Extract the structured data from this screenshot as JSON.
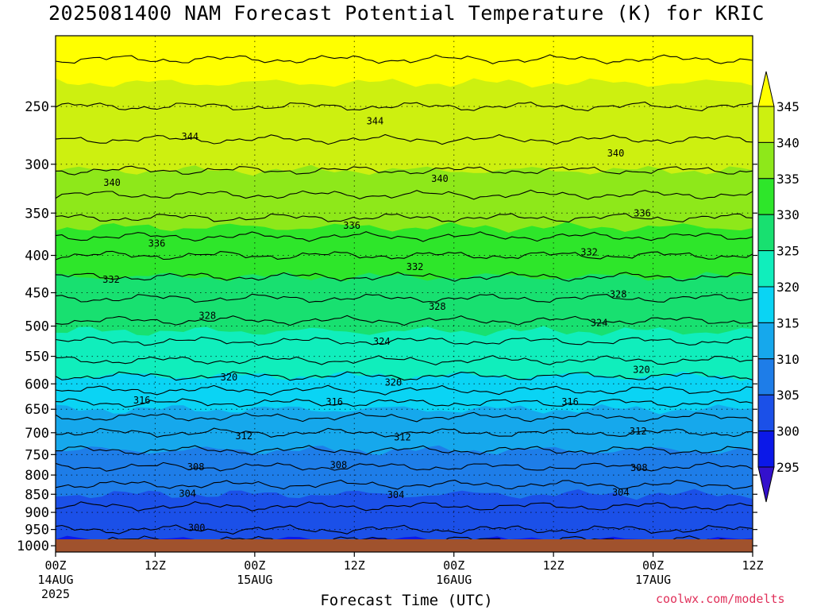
{
  "title": "2025081400 NAM Forecast Potential Temperature (K) for KRIC",
  "xlabel": "Forecast Time (UTC)",
  "credit": "coolwx.com/modelts",
  "chart_data": {
    "type": "heatmap",
    "title": "2025081400 NAM Forecast Potential Temperature (K) for KRIC",
    "xlabel": "Forecast Time (UTC)",
    "ylabel": "",
    "x_hours_range": [
      0,
      84
    ],
    "x_ticks": [
      {
        "hour": 0,
        "label": "00Z",
        "sub1": "14AUG",
        "sub2": "2025"
      },
      {
        "hour": 12,
        "label": "12Z",
        "sub1": "",
        "sub2": ""
      },
      {
        "hour": 24,
        "label": "00Z",
        "sub1": "15AUG",
        "sub2": ""
      },
      {
        "hour": 36,
        "label": "12Z",
        "sub1": "",
        "sub2": ""
      },
      {
        "hour": 48,
        "label": "00Z",
        "sub1": "16AUG",
        "sub2": ""
      },
      {
        "hour": 60,
        "label": "12Z",
        "sub1": "",
        "sub2": ""
      },
      {
        "hour": 72,
        "label": "00Z",
        "sub1": "17AUG",
        "sub2": ""
      },
      {
        "hour": 84,
        "label": "12Z",
        "sub1": "",
        "sub2": ""
      }
    ],
    "y_axis": "pressure (hPa), inverted",
    "ylim": [
      1020,
      200
    ],
    "y_ticks": [
      250,
      300,
      350,
      400,
      450,
      500,
      550,
      600,
      650,
      700,
      750,
      800,
      850,
      900,
      950,
      1000
    ],
    "colorbar": {
      "levels": [
        295,
        300,
        305,
        310,
        315,
        320,
        325,
        330,
        335,
        340,
        345
      ],
      "labels": [
        "295",
        "300",
        "305",
        "310",
        "315",
        "320",
        "325",
        "330",
        "335",
        "340",
        "345"
      ],
      "colors": [
        "#3311cc",
        "#0b18e8",
        "#1b50e8",
        "#1e7de8",
        "#16a8ec",
        "#0ad4f4",
        "#10eebc",
        "#18e070",
        "#2ee62a",
        "#8ee81a",
        "#cdf010",
        "#ffff00"
      ],
      "extend": "both"
    },
    "profile_levels_hpa": [
      1000,
      950,
      900,
      850,
      800,
      750,
      700,
      650,
      600,
      550,
      500,
      450,
      400,
      350,
      300,
      250,
      200
    ],
    "profile_theta_k": [
      299,
      302,
      303.5,
      305,
      307,
      309.5,
      312,
      315,
      319,
      322.5,
      325.5,
      328.5,
      332,
      336.5,
      340.5,
      344,
      347
    ],
    "contour_interval_k": 2,
    "contour_labels": [
      {
        "value": "344",
        "hour": 16.2,
        "p": 275
      },
      {
        "value": "344",
        "hour": 38.5,
        "p": 262
      },
      {
        "value": "340",
        "hour": 67.5,
        "p": 290
      },
      {
        "value": "340",
        "hour": 6.8,
        "p": 318
      },
      {
        "value": "340",
        "hour": 46.3,
        "p": 314
      },
      {
        "value": "336",
        "hour": 70.7,
        "p": 350
      },
      {
        "value": "336",
        "hour": 35.7,
        "p": 364
      },
      {
        "value": "336",
        "hour": 12.2,
        "p": 385
      },
      {
        "value": "332",
        "hour": 64.3,
        "p": 396
      },
      {
        "value": "332",
        "hour": 43.3,
        "p": 415
      },
      {
        "value": "332",
        "hour": 6.7,
        "p": 432
      },
      {
        "value": "328",
        "hour": 67.8,
        "p": 452
      },
      {
        "value": "328",
        "hour": 46.0,
        "p": 470
      },
      {
        "value": "328",
        "hour": 18.3,
        "p": 484
      },
      {
        "value": "324",
        "hour": 65.5,
        "p": 495
      },
      {
        "value": "324",
        "hour": 39.3,
        "p": 525
      },
      {
        "value": "320",
        "hour": 70.6,
        "p": 574
      },
      {
        "value": "320",
        "hour": 20.9,
        "p": 588
      },
      {
        "value": "320",
        "hour": 40.7,
        "p": 597
      },
      {
        "value": "316",
        "hour": 10.4,
        "p": 632
      },
      {
        "value": "316",
        "hour": 33.6,
        "p": 635
      },
      {
        "value": "316",
        "hour": 62.0,
        "p": 635
      },
      {
        "value": "312",
        "hour": 70.2,
        "p": 697
      },
      {
        "value": "312",
        "hour": 22.7,
        "p": 707
      },
      {
        "value": "312",
        "hour": 41.8,
        "p": 710
      },
      {
        "value": "308",
        "hour": 16.9,
        "p": 780
      },
      {
        "value": "308",
        "hour": 34.1,
        "p": 775
      },
      {
        "value": "308",
        "hour": 70.3,
        "p": 782
      },
      {
        "value": "304",
        "hour": 15.9,
        "p": 848
      },
      {
        "value": "304",
        "hour": 68.1,
        "p": 845
      },
      {
        "value": "304",
        "hour": 41.0,
        "p": 852
      },
      {
        "value": "300",
        "hour": 17.0,
        "p": 945
      }
    ],
    "surface_band_color": "#a0522d",
    "grid": true,
    "legend": "right (colorbar)"
  }
}
